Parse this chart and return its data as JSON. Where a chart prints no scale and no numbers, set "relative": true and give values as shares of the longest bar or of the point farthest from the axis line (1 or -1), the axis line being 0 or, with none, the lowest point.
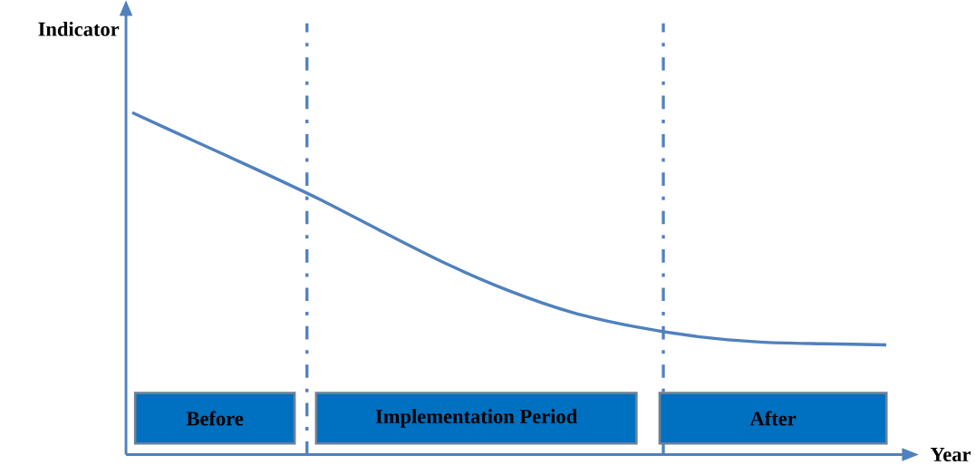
{
  "chart_data": {
    "type": "line",
    "relative": true,
    "xlabel": "Year",
    "ylabel": "Indicator",
    "categories": [
      null,
      null,
      null,
      null,
      null,
      null,
      null,
      null,
      null,
      null,
      null,
      null,
      null
    ],
    "series": [
      {
        "color": "#4f81bd",
        "values": [
          1.0,
          0.916,
          0.832,
          0.745,
          0.65,
          0.558,
          0.479,
          0.416,
          0.374,
          0.345,
          0.329,
          0.324,
          0.321
        ]
      }
    ],
    "annotations": [
      "Before",
      "Implementation Period",
      "After"
    ]
  }
}
